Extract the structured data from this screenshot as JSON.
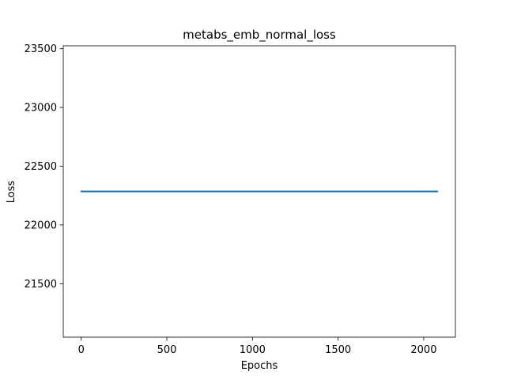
{
  "chart_data": {
    "type": "line",
    "title": "metabs_emb_normal_loss",
    "xlabel": "Epochs",
    "ylabel": "Loss",
    "xlim": [
      -105,
      2185
    ],
    "ylim": [
      21045,
      23525
    ],
    "xticks": [
      0,
      500,
      1000,
      1500,
      2000
    ],
    "yticks": [
      21500,
      22000,
      22500,
      23000,
      23500
    ],
    "grid": false,
    "series": [
      {
        "color": "#1f77b4",
        "x": [
          0,
          2080
        ],
        "values": [
          22285,
          22285
        ]
      }
    ]
  }
}
